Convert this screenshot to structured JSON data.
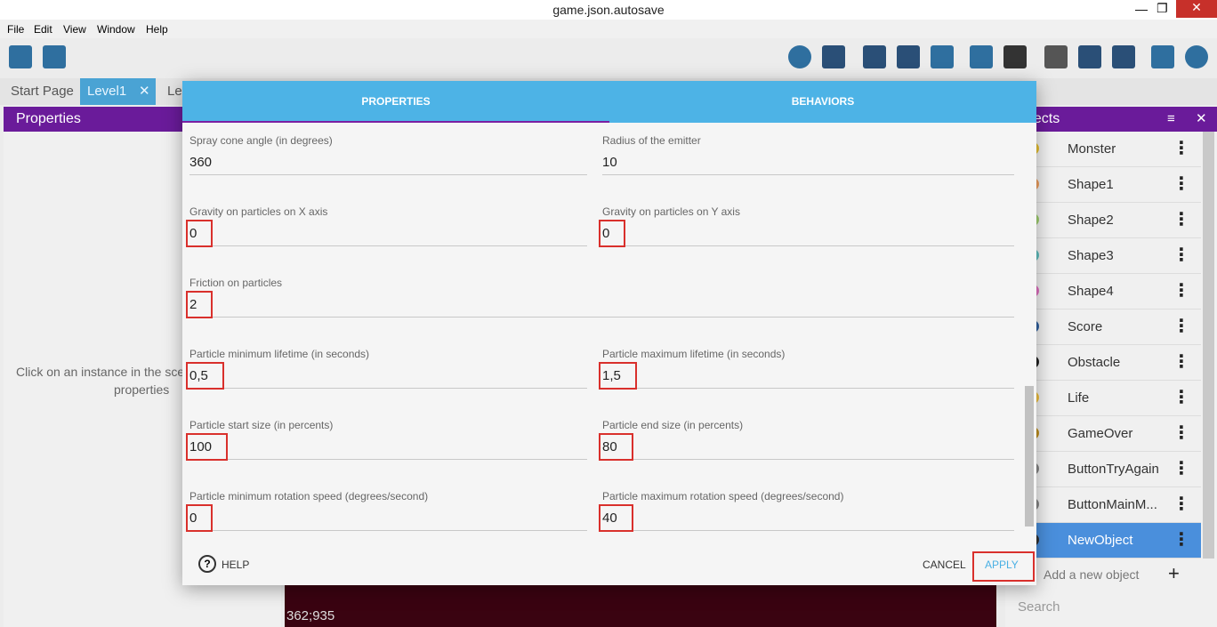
{
  "window": {
    "title": "game.json.autosave"
  },
  "menu": [
    "File",
    "Edit",
    "View",
    "Window",
    "Help"
  ],
  "tabs": [
    "Start Page",
    "Level1",
    "Le"
  ],
  "left_panel": {
    "title": "Properties",
    "message": [
      "Click on an instance in the sce",
      "properties"
    ]
  },
  "objects_panel": {
    "title": "Objects",
    "items": [
      "Monster",
      "Shape1",
      "Shape2",
      "Shape3",
      "Shape4",
      "Score",
      "Obstacle",
      "Life",
      "GameOver",
      "ButtonTryAgain",
      "ButtonMainM...",
      "NewObject"
    ],
    "selected": "NewObject",
    "add": "Add a new object",
    "search": "Search"
  },
  "status": {
    "coords": "362;935"
  },
  "dialog": {
    "tabs": [
      "PROPERTIES",
      "BEHAVIORS"
    ],
    "rows": [
      [
        {
          "label": "Spray cone angle (in degrees)",
          "value": "360"
        },
        {
          "label": "Radius of the emitter",
          "value": "10"
        }
      ],
      [
        {
          "label": "Gravity on particles on X axis",
          "value": "0"
        },
        {
          "label": "Gravity on particles on Y axis",
          "value": "0"
        }
      ],
      [
        {
          "label": "Friction on particles",
          "value": "2"
        }
      ],
      [
        {
          "label": "Particle minimum lifetime (in seconds)",
          "value": "0,5"
        },
        {
          "label": "Particle maximum lifetime (in seconds)",
          "value": "1,5"
        }
      ],
      [
        {
          "label": "Particle start size (in percents)",
          "value": "100"
        },
        {
          "label": "Particle end size (in percents)",
          "value": "80"
        }
      ],
      [
        {
          "label": "Particle minimum rotation speed (degrees/second)",
          "value": "0"
        },
        {
          "label": "Particle maximum rotation speed (degrees/second)",
          "value": "40"
        }
      ]
    ],
    "buttons": {
      "help": "HELP",
      "cancel": "CANCEL",
      "apply": "APPLY"
    }
  }
}
